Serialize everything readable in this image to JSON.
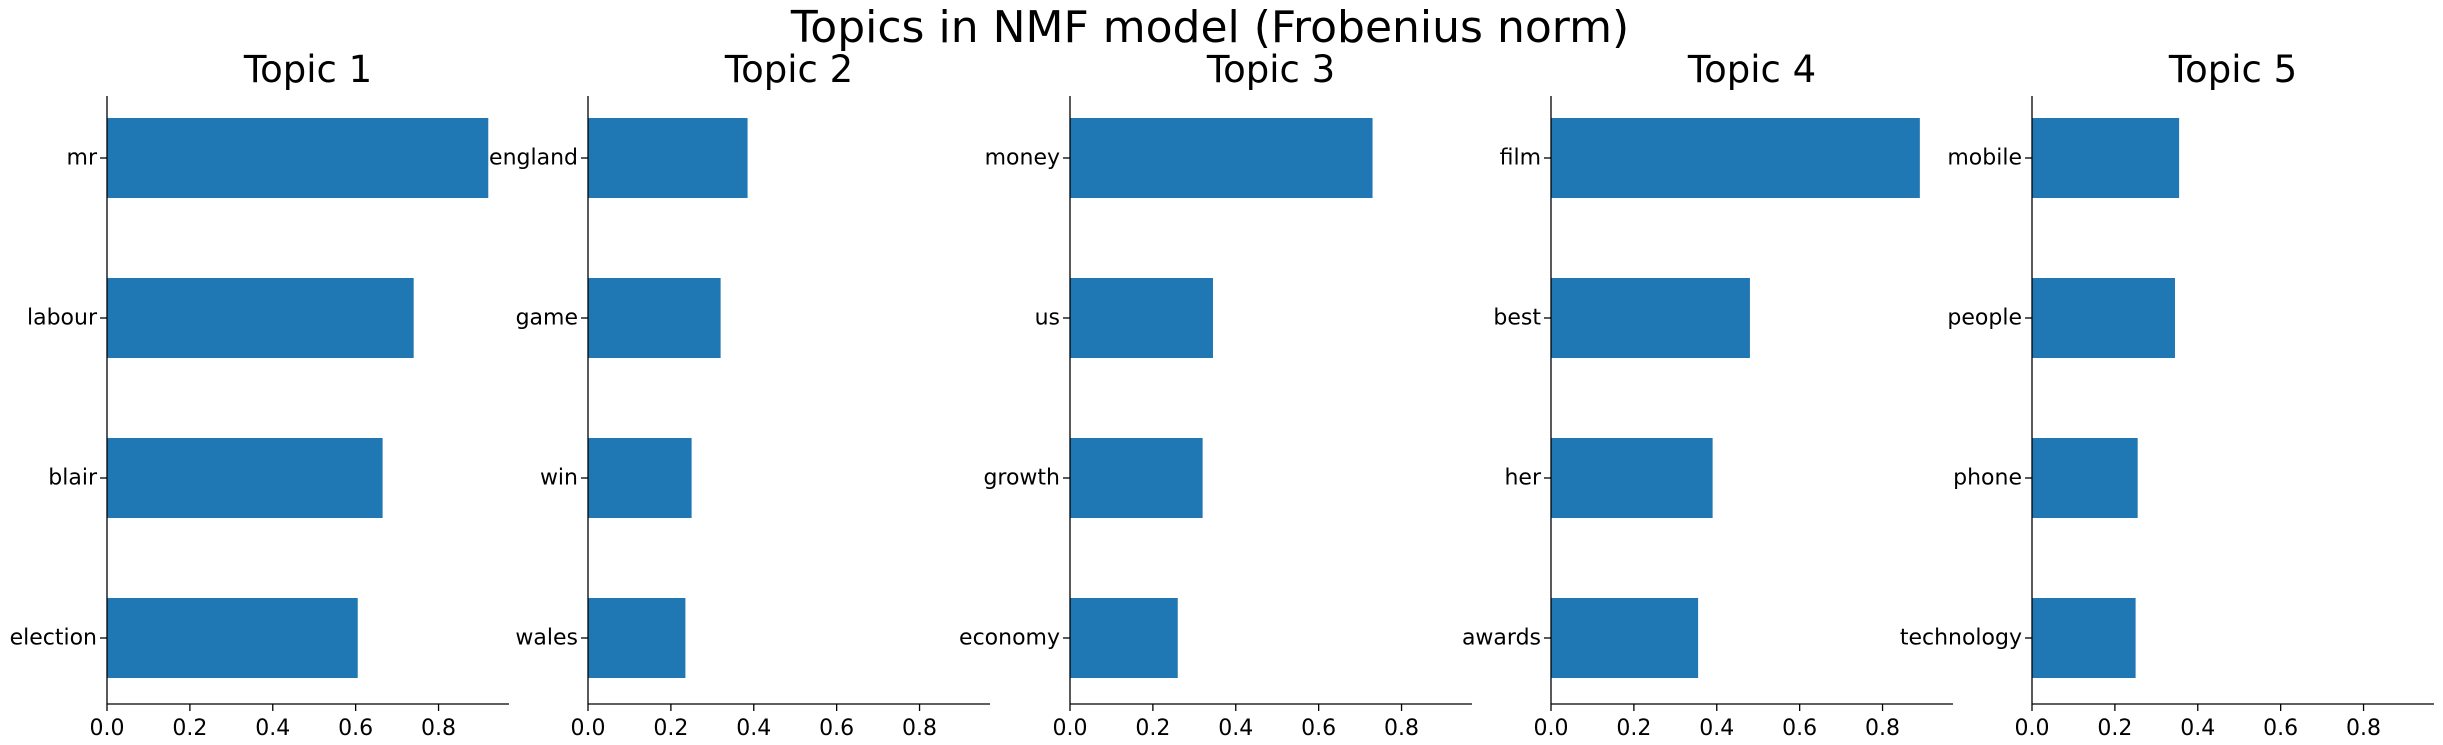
{
  "chart_data": {
    "type": "bar",
    "orientation": "horizontal",
    "title": "Topics in NMF model (Frobenius norm)",
    "bar_color": "#1f77b4",
    "grid": false,
    "xlim": [
      0,
      0.97
    ],
    "xticks": [
      "0.0",
      "0.2",
      "0.4",
      "0.6",
      "0.8"
    ],
    "panels": [
      {
        "title": "Topic 1",
        "categories": [
          "mr",
          "labour",
          "blair",
          "election"
        ],
        "values": [
          0.92,
          0.74,
          0.665,
          0.605
        ]
      },
      {
        "title": "Topic 2",
        "categories": [
          "england",
          "game",
          "win",
          "wales"
        ],
        "values": [
          0.385,
          0.32,
          0.25,
          0.235
        ]
      },
      {
        "title": "Topic 3",
        "categories": [
          "money",
          "us",
          "growth",
          "economy"
        ],
        "values": [
          0.73,
          0.345,
          0.32,
          0.26
        ]
      },
      {
        "title": "Topic 4",
        "categories": [
          "film",
          "best",
          "her",
          "awards"
        ],
        "values": [
          0.89,
          0.48,
          0.39,
          0.355
        ]
      },
      {
        "title": "Topic 5",
        "categories": [
          "mobile",
          "people",
          "phone",
          "technology"
        ],
        "values": [
          0.355,
          0.345,
          0.255,
          0.25
        ]
      }
    ]
  }
}
